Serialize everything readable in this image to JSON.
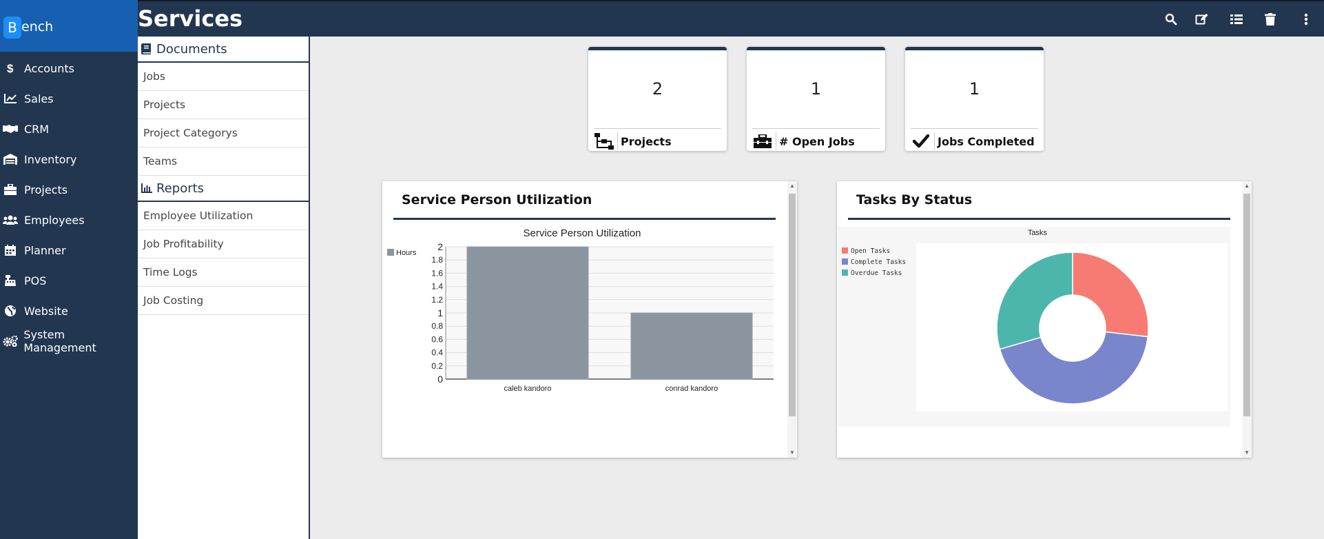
{
  "app": {
    "brand_badge": "B",
    "brand_text": "ench",
    "page_title": "Services"
  },
  "nav": {
    "items": [
      {
        "label": "Accounts",
        "icon": "dollar-icon"
      },
      {
        "label": "Sales",
        "icon": "chart-line-icon"
      },
      {
        "label": "CRM",
        "icon": "handshake-icon"
      },
      {
        "label": "Inventory",
        "icon": "warehouse-icon"
      },
      {
        "label": "Projects",
        "icon": "toolbox-icon"
      },
      {
        "label": "Employees",
        "icon": "users-icon"
      },
      {
        "label": "Planner",
        "icon": "calendar-icon"
      },
      {
        "label": "POS",
        "icon": "cash-register-icon"
      },
      {
        "label": "Website",
        "icon": "globe-icon"
      },
      {
        "label": "System Management",
        "icon": "cogs-icon"
      }
    ]
  },
  "toolbar": {
    "icons": [
      "search-icon",
      "edit-icon",
      "list-icon",
      "trash-icon",
      "more-vertical-icon"
    ]
  },
  "submenu": {
    "documents_label": "Documents",
    "documents": [
      "Jobs",
      "Projects",
      "Project Categorys",
      "Teams"
    ],
    "reports_label": "Reports",
    "reports": [
      "Employee Utilization",
      "Job Profitability",
      "Time Logs",
      "Job Costing"
    ]
  },
  "stats": [
    {
      "value": "2",
      "label": "Projects",
      "icon": "sitemap-icon"
    },
    {
      "value": "1",
      "label": "# Open Jobs",
      "icon": "toolbox-icon"
    },
    {
      "value": "1",
      "label": "Jobs Completed",
      "icon": "check-icon"
    }
  ],
  "panels": {
    "utilization_title": "Service Person Utilization",
    "tasks_title": "Tasks By Status"
  },
  "chart_data": [
    {
      "type": "bar",
      "title": "Service Person Utilization",
      "categories": [
        "caleb kandoro",
        "conrad kandoro"
      ],
      "series": [
        {
          "name": "Hours",
          "values": [
            2,
            1
          ]
        }
      ],
      "ylim": [
        0,
        2
      ],
      "yticks": [
        "0",
        "0.2",
        "0.4",
        "0.6",
        "0.8",
        "1",
        "1.2",
        "1.4",
        "1.6",
        "1.8",
        "2"
      ],
      "grid": true,
      "legend": "left",
      "color": "#8a959f"
    },
    {
      "type": "pie",
      "title": "Tasks",
      "categories": [
        "Open Tasks",
        "Complete Tasks",
        "Overdue Tasks"
      ],
      "values": [
        1,
        1.63,
        1.1
      ],
      "colors": [
        "#f77b72",
        "#7a86cb",
        "#4db6ac"
      ],
      "donut": true,
      "legend": "top-left"
    }
  ]
}
